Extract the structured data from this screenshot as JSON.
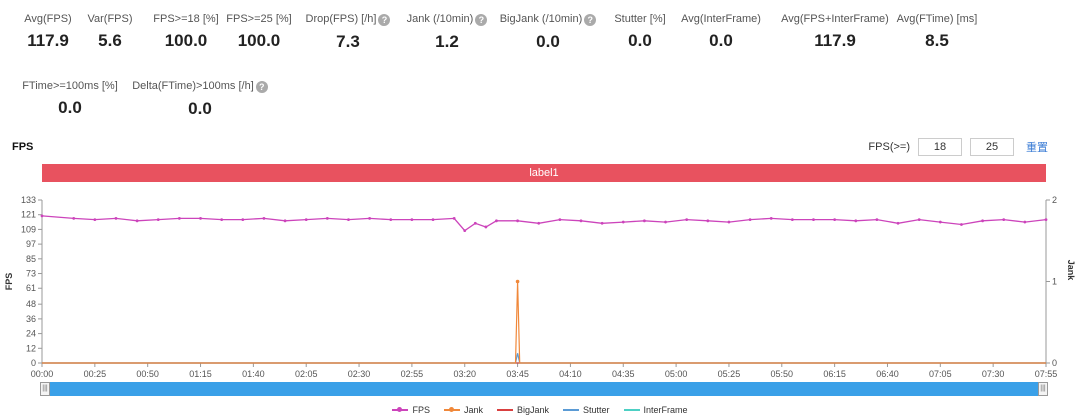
{
  "metrics": [
    {
      "label": "Avg(FPS)",
      "value": "117.9",
      "help": false
    },
    {
      "label": "Var(FPS)",
      "value": "5.6",
      "help": false
    },
    {
      "label": "FPS>=18 [%]",
      "value": "100.0",
      "help": false
    },
    {
      "label": "FPS>=25 [%]",
      "value": "100.0",
      "help": false
    },
    {
      "label": "Drop(FPS) [/h]",
      "value": "7.3",
      "help": true
    },
    {
      "label": "Jank (/10min)",
      "value": "1.2",
      "help": true
    },
    {
      "label": "BigJank (/10min)",
      "value": "0.0",
      "help": true
    },
    {
      "label": "Stutter [%]",
      "value": "0.0",
      "help": false
    },
    {
      "label": "Avg(InterFrame)",
      "value": "0.0",
      "help": false
    },
    {
      "label": "Avg(FPS+InterFrame)",
      "value": "117.9",
      "help": false
    },
    {
      "label": "Avg(FTime) [ms]",
      "value": "8.5",
      "help": false
    },
    {
      "label": "FTime>=100ms [%]",
      "value": "0.0",
      "help": false
    },
    {
      "label": "Delta(FTime)>100ms [/h]",
      "value": "0.0",
      "help": true
    }
  ],
  "help_glyph": "?",
  "chart_title": "FPS",
  "threshold": {
    "label": "FPS(>=)",
    "value1": "18",
    "value2": "25",
    "reset": "重置"
  },
  "label_bar": "label1",
  "zoom_handle_glyph": "|||",
  "colors": {
    "fps": "#cc44bb",
    "jank": "#f0883a",
    "bigjank": "#d94040",
    "stutter": "#5b9bd5",
    "interframe": "#4dd0c4",
    "label_bar": "#e8525f"
  },
  "chart_data": {
    "type": "line",
    "ylabel": "FPS",
    "y2label": "Jank",
    "ylim": [
      0,
      133
    ],
    "y2lim": [
      0,
      2
    ],
    "yticks": [
      0,
      12,
      24,
      36,
      48,
      61,
      73,
      85,
      97,
      109,
      121,
      133
    ],
    "y2ticks": [
      0,
      1,
      2
    ],
    "xlim": [
      0,
      475
    ],
    "xticks": [
      "00:00",
      "00:25",
      "00:50",
      "01:15",
      "01:40",
      "02:05",
      "02:30",
      "02:55",
      "03:20",
      "03:45",
      "04:10",
      "04:35",
      "05:00",
      "05:25",
      "05:50",
      "06:15",
      "06:40",
      "07:05",
      "07:30",
      "07:55"
    ],
    "xtick_seconds": [
      0,
      25,
      50,
      75,
      100,
      125,
      150,
      175,
      200,
      225,
      250,
      275,
      300,
      325,
      350,
      375,
      400,
      425,
      450,
      475
    ],
    "series": [
      {
        "name": "FPS",
        "axis": "left",
        "x": [
          0,
          15,
          25,
          35,
          45,
          55,
          65,
          75,
          85,
          95,
          105,
          115,
          125,
          135,
          145,
          155,
          165,
          175,
          185,
          195,
          200,
          205,
          210,
          215,
          225,
          235,
          245,
          255,
          265,
          275,
          285,
          295,
          305,
          315,
          325,
          335,
          345,
          355,
          365,
          375,
          385,
          395,
          405,
          415,
          425,
          435,
          445,
          455,
          465,
          475
        ],
        "y": [
          120,
          118,
          117,
          118,
          116,
          117,
          118,
          118,
          117,
          117,
          118,
          116,
          117,
          118,
          117,
          118,
          117,
          117,
          117,
          118,
          108,
          114,
          111,
          116,
          116,
          114,
          117,
          116,
          114,
          115,
          116,
          115,
          117,
          116,
          115,
          117,
          118,
          117,
          117,
          117,
          116,
          117,
          114,
          117,
          115,
          113,
          116,
          117,
          115,
          117
        ]
      },
      {
        "name": "Jank",
        "axis": "right",
        "x": [
          0,
          224,
          225,
          226,
          475
        ],
        "y": [
          0,
          0,
          1,
          0,
          0
        ]
      },
      {
        "name": "BigJank",
        "axis": "right",
        "x": [
          0,
          475
        ],
        "y": [
          0,
          0
        ]
      },
      {
        "name": "Stutter",
        "axis": "left",
        "x": [
          0,
          224,
          225,
          226,
          475
        ],
        "y": [
          0,
          0,
          8,
          0,
          0
        ]
      },
      {
        "name": "InterFrame",
        "axis": "left",
        "x": [
          0,
          475
        ],
        "y": [
          0,
          0
        ]
      }
    ]
  }
}
